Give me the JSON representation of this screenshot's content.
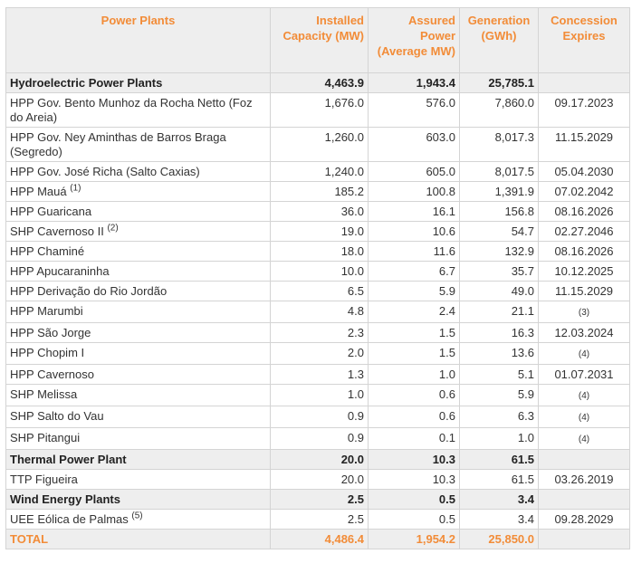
{
  "headers": {
    "power_plants": "Power Plants",
    "installed_capacity": "Installed Capacity (MW)",
    "assured_power": "Assured Power (Average MW)",
    "generation": "Generation (GWh)",
    "concession": "Concession Expires"
  },
  "rows": [
    {
      "type": "section",
      "name": "Hydroelectric Power Plants",
      "note": "",
      "cap": "4,463.9",
      "assured": "1,943.4",
      "gen": "25,785.1",
      "conc": "",
      "conc_note": ""
    },
    {
      "type": "plant",
      "name": "HPP Gov. Bento Munhoz da Rocha Netto (Foz do Areia)",
      "note": "",
      "cap": "1,676.0",
      "assured": "576.0",
      "gen": "7,860.0",
      "conc": "09.17.2023",
      "conc_note": ""
    },
    {
      "type": "plant",
      "name": "HPP Gov. Ney Aminthas de Barros Braga (Segredo)",
      "note": "",
      "cap": "1,260.0",
      "assured": "603.0",
      "gen": "8,017.3",
      "conc": "11.15.2029",
      "conc_note": ""
    },
    {
      "type": "plant",
      "name": "HPP Gov. José Richa (Salto Caxias)",
      "note": "",
      "cap": "1,240.0",
      "assured": "605.0",
      "gen": "8,017.5",
      "conc": "05.04.2030",
      "conc_note": ""
    },
    {
      "type": "plant",
      "name": "HPP Mauá",
      "note": "(1)",
      "cap": "185.2",
      "assured": "100.8",
      "gen": "1,391.9",
      "conc": "07.02.2042",
      "conc_note": ""
    },
    {
      "type": "plant",
      "name": "HPP Guaricana",
      "note": "",
      "cap": "36.0",
      "assured": "16.1",
      "gen": "156.8",
      "conc": "08.16.2026",
      "conc_note": ""
    },
    {
      "type": "plant",
      "name": "SHP Cavernoso II",
      "note": "(2)",
      "cap": "19.0",
      "assured": "10.6",
      "gen": "54.7",
      "conc": "02.27.2046",
      "conc_note": ""
    },
    {
      "type": "plant",
      "name": "HPP Chaminé",
      "note": "",
      "cap": "18.0",
      "assured": "11.6",
      "gen": "132.9",
      "conc": "08.16.2026",
      "conc_note": ""
    },
    {
      "type": "plant",
      "name": "HPP Apucaraninha",
      "note": "",
      "cap": "10.0",
      "assured": "6.7",
      "gen": "35.7",
      "conc": "10.12.2025",
      "conc_note": ""
    },
    {
      "type": "plant",
      "name": "HPP Derivação do Rio Jordão",
      "note": "",
      "cap": "6.5",
      "assured": "5.9",
      "gen": "49.0",
      "conc": "11.15.2029",
      "conc_note": ""
    },
    {
      "type": "plant",
      "name": "HPP Marumbi",
      "note": "",
      "cap": "4.8",
      "assured": "2.4",
      "gen": "21.1",
      "conc": "",
      "conc_note": "(3)"
    },
    {
      "type": "plant",
      "name": "HPP São Jorge",
      "note": "",
      "cap": "2.3",
      "assured": "1.5",
      "gen": "16.3",
      "conc": "12.03.2024",
      "conc_note": ""
    },
    {
      "type": "plant",
      "name": "HPP Chopim I",
      "note": "",
      "cap": "2.0",
      "assured": "1.5",
      "gen": "13.6",
      "conc": "",
      "conc_note": "(4)"
    },
    {
      "type": "plant",
      "name": "HPP Cavernoso",
      "note": "",
      "cap": "1.3",
      "assured": "1.0",
      "gen": "5.1",
      "conc": "01.07.2031",
      "conc_note": ""
    },
    {
      "type": "plant",
      "name": "SHP Melissa",
      "note": "",
      "cap": "1.0",
      "assured": "0.6",
      "gen": "5.9",
      "conc": "",
      "conc_note": "(4)"
    },
    {
      "type": "plant",
      "name": "SHP Salto do Vau",
      "note": "",
      "cap": "0.9",
      "assured": "0.6",
      "gen": "6.3",
      "conc": "",
      "conc_note": "(4)"
    },
    {
      "type": "plant",
      "name": "SHP Pitangui",
      "note": "",
      "cap": "0.9",
      "assured": "0.1",
      "gen": "1.0",
      "conc": "",
      "conc_note": "(4)"
    },
    {
      "type": "section",
      "name": "Thermal Power Plant",
      "note": "",
      "cap": "20.0",
      "assured": "10.3",
      "gen": "61.5",
      "conc": "",
      "conc_note": ""
    },
    {
      "type": "plant",
      "name": "TTP Figueira",
      "note": "",
      "cap": "20.0",
      "assured": "10.3",
      "gen": "61.5",
      "conc": "03.26.2019",
      "conc_note": ""
    },
    {
      "type": "section",
      "name": "Wind Energy Plants",
      "note": "",
      "cap": "2.5",
      "assured": "0.5",
      "gen": "3.4",
      "conc": "",
      "conc_note": ""
    },
    {
      "type": "plant",
      "name": "UEE Eólica de Palmas",
      "note": "(5)",
      "cap": "2.5",
      "assured": "0.5",
      "gen": "3.4",
      "conc": "09.28.2029",
      "conc_note": ""
    },
    {
      "type": "total",
      "name": "TOTAL",
      "note": "",
      "cap": "4,486.4",
      "assured": "1,954.2",
      "gen": "25,850.0",
      "conc": "",
      "conc_note": ""
    }
  ],
  "colors": {
    "header_text": "#f28c38",
    "header_bg": "#eeeeee",
    "border": "#d4d4d4",
    "body_text": "#333333"
  }
}
